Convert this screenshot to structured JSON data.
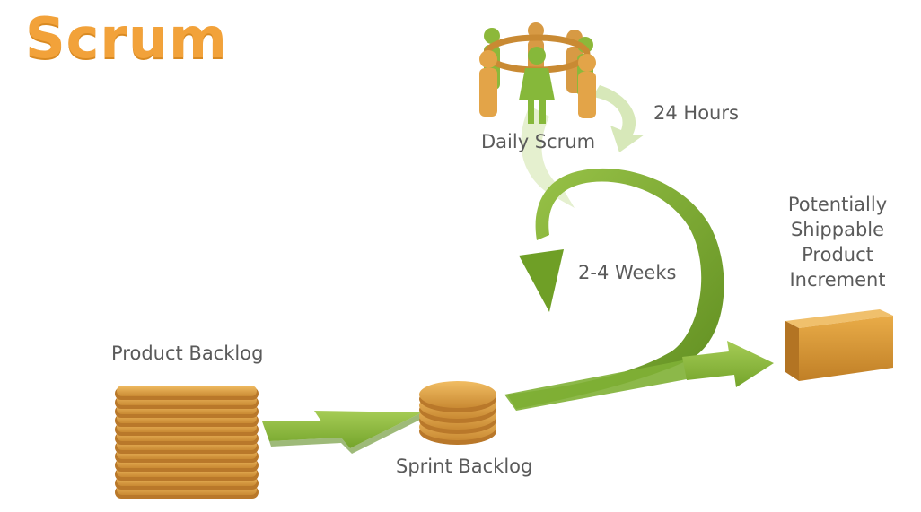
{
  "title": "Scrum",
  "daily_scrum": {
    "label": "Daily Scrum",
    "cycle_label": "24 Hours"
  },
  "sprint": {
    "cycle_label": "2-4 Weeks"
  },
  "product_backlog": {
    "label": "Product Backlog"
  },
  "sprint_backlog": {
    "label": "Sprint Backlog"
  },
  "increment": {
    "lines": [
      "Potentially",
      "Shippable",
      "Product",
      "Increment"
    ]
  },
  "colors": {
    "title_orange": "#f2a23a",
    "gold": "#e3a448",
    "gold_dark": "#b9782a",
    "arrow_green": "#86b83a",
    "arrow_green_dark": "#5e8c1f",
    "arrow_green_light": "#cfe3a8",
    "label_gray": "#5a5a5a"
  }
}
